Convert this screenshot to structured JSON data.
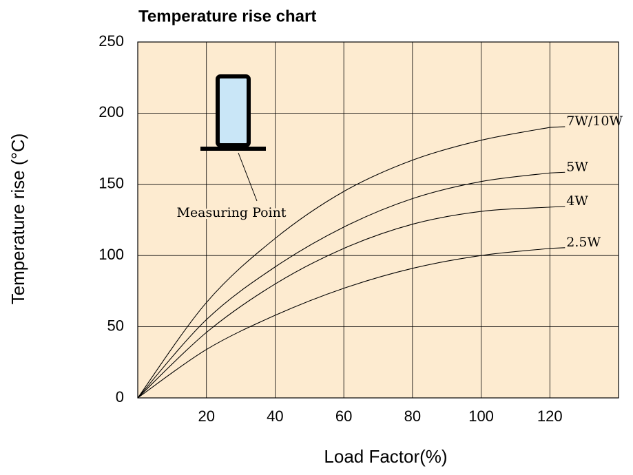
{
  "chart_data": {
    "type": "line",
    "title": "Temperature rise chart",
    "x_label": "Load Factor(%)",
    "y_label": "Temperature rise (°C)",
    "annotation": "Measuring Point",
    "x": [
      0,
      20,
      40,
      60,
      80,
      100,
      120
    ],
    "series": [
      {
        "name": "7W/10W",
        "color": "#000000",
        "values": [
          0,
          67,
          112,
          145,
          167,
          181,
          190
        ]
      },
      {
        "name": "5W",
        "color": "#000000",
        "values": [
          0,
          55,
          92,
          120,
          140,
          152,
          158
        ]
      },
      {
        "name": "4W",
        "color": "#000000",
        "values": [
          0,
          46,
          80,
          105,
          122,
          131,
          134
        ]
      },
      {
        "name": "2.5W",
        "color": "#000000",
        "values": [
          0,
          34,
          58,
          77,
          91,
          100,
          105
        ]
      }
    ],
    "xlim": [
      0,
      140
    ],
    "xticks": [
      20,
      40,
      60,
      80,
      100,
      120
    ],
    "ylim": [
      0,
      250
    ],
    "yticks": [
      0,
      50,
      100,
      150,
      200,
      250
    ],
    "grid": true,
    "background": "#fdebd0"
  }
}
